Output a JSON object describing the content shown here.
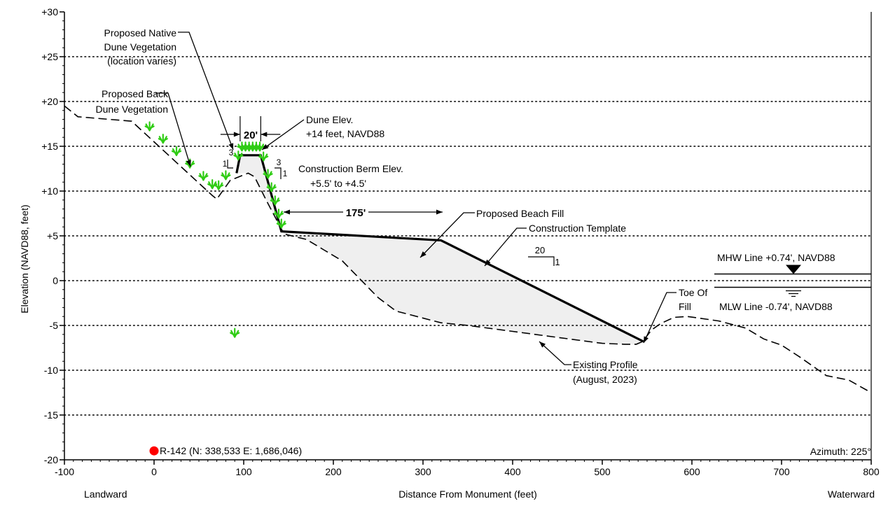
{
  "chart_data": {
    "type": "line",
    "title": "",
    "xlabel": "Distance From Monument (feet)",
    "ylabel": "Elevation (NAVD88, feet)",
    "xlim": [
      -100,
      800
    ],
    "ylim": [
      -20,
      30
    ],
    "x_ticks": [
      -100,
      0,
      100,
      200,
      300,
      400,
      500,
      600,
      700,
      800
    ],
    "x_tick_labels": [
      "-100",
      "0",
      "100",
      "200",
      "300",
      "400",
      "500",
      "600",
      "700",
      "800"
    ],
    "y_ticks": [
      30,
      25,
      20,
      15,
      10,
      5,
      0,
      -5,
      -10,
      -15,
      -20
    ],
    "y_tick_labels": [
      "+30",
      "+25",
      "+20",
      "+15",
      "+10",
      "+5",
      "0",
      "-5",
      "-10",
      "-15",
      "-20"
    ],
    "grid": "horizontal dotted",
    "x_end_labels": {
      "left": "Landward",
      "right": "Waterward"
    },
    "azimuth_label": "Azimuth: 225°",
    "monument": {
      "label": "R-142 (N: 338,533 E: 1,686,046)",
      "x": 0,
      "y": -19,
      "color": "#ff0000"
    },
    "series": [
      {
        "style": "dashed",
        "x": [
          -100,
          -85,
          -25,
          65,
          70,
          85,
          105,
          112,
          125,
          145,
          170,
          190,
          210,
          250,
          270,
          320,
          350,
          500,
          525,
          538,
          545,
          555,
          565,
          580,
          595,
          630,
          660,
          680,
          700,
          720,
          750,
          775,
          800
        ],
        "y": [
          19.5,
          18.3,
          17.8,
          9.5,
          9.1,
          11.2,
          12.0,
          11.6,
          9.0,
          5.2,
          4.6,
          3.4,
          2.2,
          -1.9,
          -3.4,
          -4.7,
          -5.0,
          -7.0,
          -7.1,
          -7.1,
          -6.8,
          -5.5,
          -4.8,
          -4.1,
          -4.0,
          -4.5,
          -5.3,
          -6.5,
          -7.2,
          -8.5,
          -10.6,
          -11.1,
          -12.5
        ]
      },
      {
        "style": "solid",
        "x": [
          92,
          96,
          119,
          142,
          320,
          546
        ],
        "y": [
          12.0,
          14.0,
          14.0,
          5.5,
          4.5,
          -6.8
        ]
      }
    ],
    "fill_region": {
      "color": "#efefef",
      "description": "area between construction template and existing profile"
    },
    "vegetation_color": "#2fcc14",
    "water_lines": [
      {
        "label": "MHW Line +0.74', NAVD88",
        "y": 0.74
      },
      {
        "label": "MLW Line -0.74', NAVD88",
        "y": -0.74
      }
    ],
    "slopes": [
      {
        "run": "3",
        "rise": "1"
      },
      {
        "run": "3",
        "rise": "1"
      },
      {
        "run": "20",
        "rise": "1"
      }
    ],
    "dimensions": [
      {
        "label": "20'"
      },
      {
        "label": "175'"
      }
    ],
    "annotations": [
      {
        "lines": [
          "Proposed Native",
          "Dune Vegetation",
          "(location varies)"
        ]
      },
      {
        "lines": [
          "Proposed Back",
          "Dune Vegetation"
        ]
      },
      {
        "lines": [
          "Dune Elev.",
          "+14 feet, NAVD88"
        ]
      },
      {
        "lines": [
          "Construction Berm Elev.",
          "+5.5' to +4.5'"
        ]
      },
      {
        "lines": [
          "Proposed Beach Fill",
          "Construction Template"
        ]
      },
      {
        "lines": [
          "Toe Of",
          "Fill"
        ]
      },
      {
        "lines": [
          "Existing Profile",
          "(August, 2023)"
        ]
      }
    ]
  }
}
